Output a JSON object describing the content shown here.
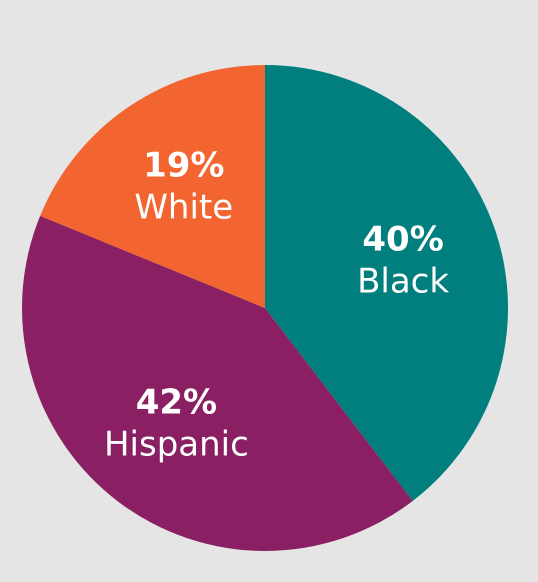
{
  "chart_data": {
    "type": "pie",
    "categories": [
      "Black",
      "Hispanic",
      "White"
    ],
    "values": [
      40,
      42,
      19
    ],
    "value_labels": [
      "40%",
      "42%",
      "19%"
    ],
    "colors": [
      "#007f7e",
      "#8a2063",
      "#f26531"
    ]
  }
}
